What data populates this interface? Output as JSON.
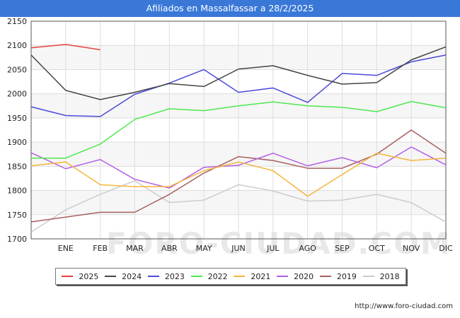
{
  "header": {
    "title": "Afiliados en Massalfassar a 28/2/2025"
  },
  "watermark": "FORO-CIUDAD.COM",
  "source": "http://www.foro-ciudad.com",
  "chart_data": {
    "type": "line",
    "title": "Afiliados en Massalfassar a 28/2/2025",
    "xlabel": "",
    "ylabel": "",
    "categories": [
      "",
      "ENE",
      "FEB",
      "MAR",
      "ABR",
      "MAY",
      "JUN",
      "JUL",
      "AGO",
      "SEP",
      "OCT",
      "NOV",
      "DIC"
    ],
    "yticks": [
      1700,
      1750,
      1800,
      1850,
      1900,
      1950,
      2000,
      2050,
      2100,
      2150
    ],
    "ylim": [
      1700,
      2150
    ],
    "grid": true,
    "legend_position": "bottom",
    "series": [
      {
        "name": "2025",
        "color": "#e8413c",
        "values": [
          2095,
          2102,
          2091,
          null,
          null,
          null,
          null,
          null,
          null,
          null,
          null,
          null,
          null
        ]
      },
      {
        "name": "2024",
        "color": "#444444",
        "values": [
          2080,
          2007,
          1988,
          2003,
          2021,
          2015,
          2051,
          2058,
          2038,
          2020,
          2023,
          2070,
          2097
        ]
      },
      {
        "name": "2023",
        "color": "#4a4adb",
        "values": [
          1973,
          1955,
          1953,
          1999,
          2022,
          2050,
          2003,
          2012,
          1982,
          2042,
          2038,
          2066,
          2080
        ]
      },
      {
        "name": "2022",
        "color": "#4ee84e",
        "values": [
          1867,
          1867,
          1896,
          1947,
          1969,
          1965,
          1975,
          1983,
          1975,
          1972,
          1963,
          1984,
          1971
        ]
      },
      {
        "name": "2021",
        "color": "#f5b53a",
        "values": [
          1851,
          1859,
          1812,
          1808,
          1808,
          1841,
          1859,
          1841,
          1788,
          1833,
          1877,
          1862,
          1867
        ]
      },
      {
        "name": "2020",
        "color": "#b460e6",
        "values": [
          1878,
          1845,
          1864,
          1823,
          1805,
          1848,
          1852,
          1877,
          1851,
          1868,
          1847,
          1890,
          1853
        ]
      },
      {
        "name": "2019",
        "color": "#a86060",
        "values": [
          1735,
          1745,
          1755,
          1755,
          1792,
          1836,
          1870,
          1862,
          1846,
          1846,
          1875,
          1925,
          1877
        ]
      },
      {
        "name": "2018",
        "color": "#cccccc",
        "values": [
          1714,
          1760,
          1792,
          1820,
          1775,
          1780,
          1812,
          1799,
          1778,
          1780,
          1792,
          1775,
          1735
        ]
      }
    ]
  }
}
